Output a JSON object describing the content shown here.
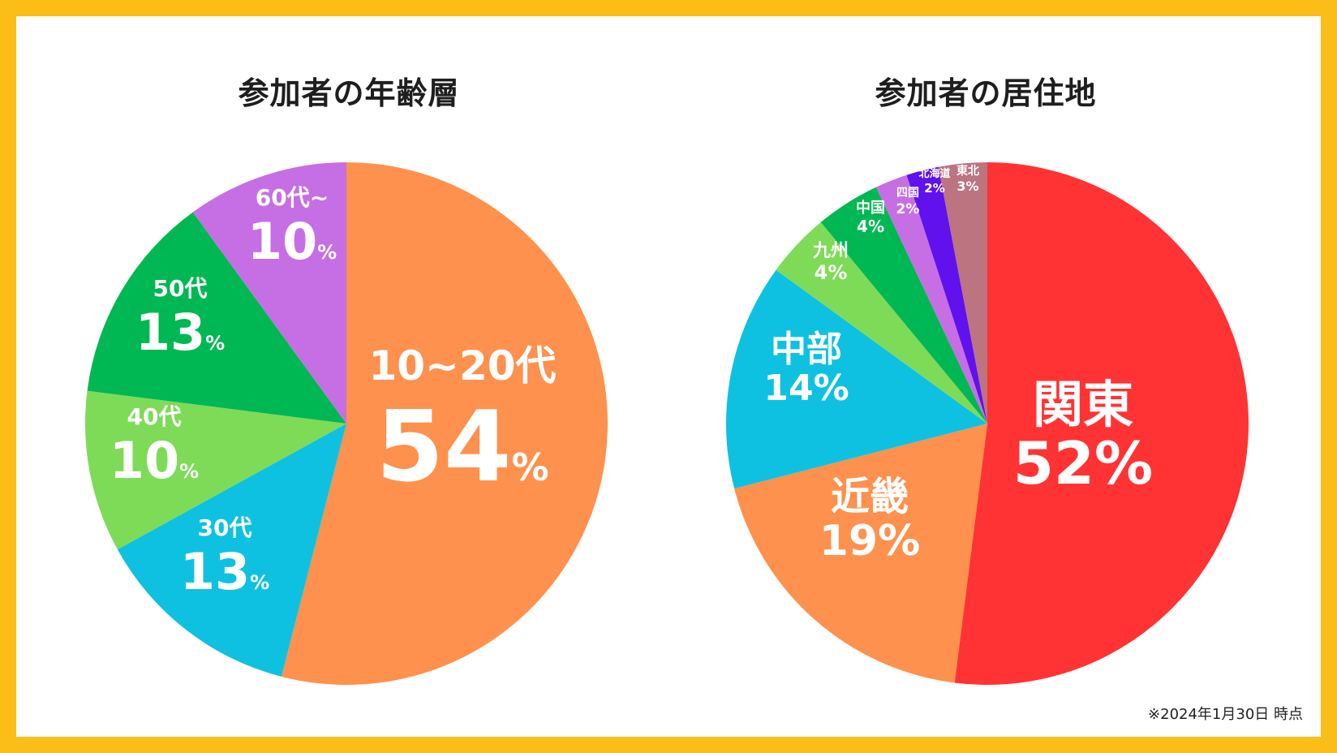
{
  "chart_data": [
    {
      "type": "pie",
      "title": "参加者の年齢層",
      "slices": [
        {
          "label": "10~20代",
          "value": 54,
          "color": "#fe914d"
        },
        {
          "label": "30代",
          "value": 13,
          "color": "#0fc1e0"
        },
        {
          "label": "40代",
          "value": 10,
          "color": "#7edb58"
        },
        {
          "label": "50代",
          "value": 13,
          "color": "#00b853"
        },
        {
          "label": "60代~",
          "value": 10,
          "color": "#c66fe4"
        }
      ]
    },
    {
      "type": "pie",
      "title": "参加者の居住地",
      "slices": [
        {
          "label": "関東",
          "value": 52,
          "color": "#ff3333"
        },
        {
          "label": "近畿",
          "value": 19,
          "color": "#fe914d"
        },
        {
          "label": "中部",
          "value": 14,
          "color": "#0fc1e0"
        },
        {
          "label": "九州",
          "value": 4,
          "color": "#7edb58"
        },
        {
          "label": "中国",
          "value": 4,
          "color": "#00b853"
        },
        {
          "label": "四国",
          "value": 2,
          "color": "#c66fe4"
        },
        {
          "label": "北海道",
          "value": 2,
          "color": "#6011ed"
        },
        {
          "label": "東北",
          "value": 3,
          "color": "#bb7480"
        }
      ]
    }
  ],
  "labels": {
    "percent_sign": "%"
  },
  "footnote": "※2024年1月30日 時点",
  "colors": {
    "frame": "#fbbd17",
    "background": "#ffffff",
    "label_text": "#ffffff"
  }
}
